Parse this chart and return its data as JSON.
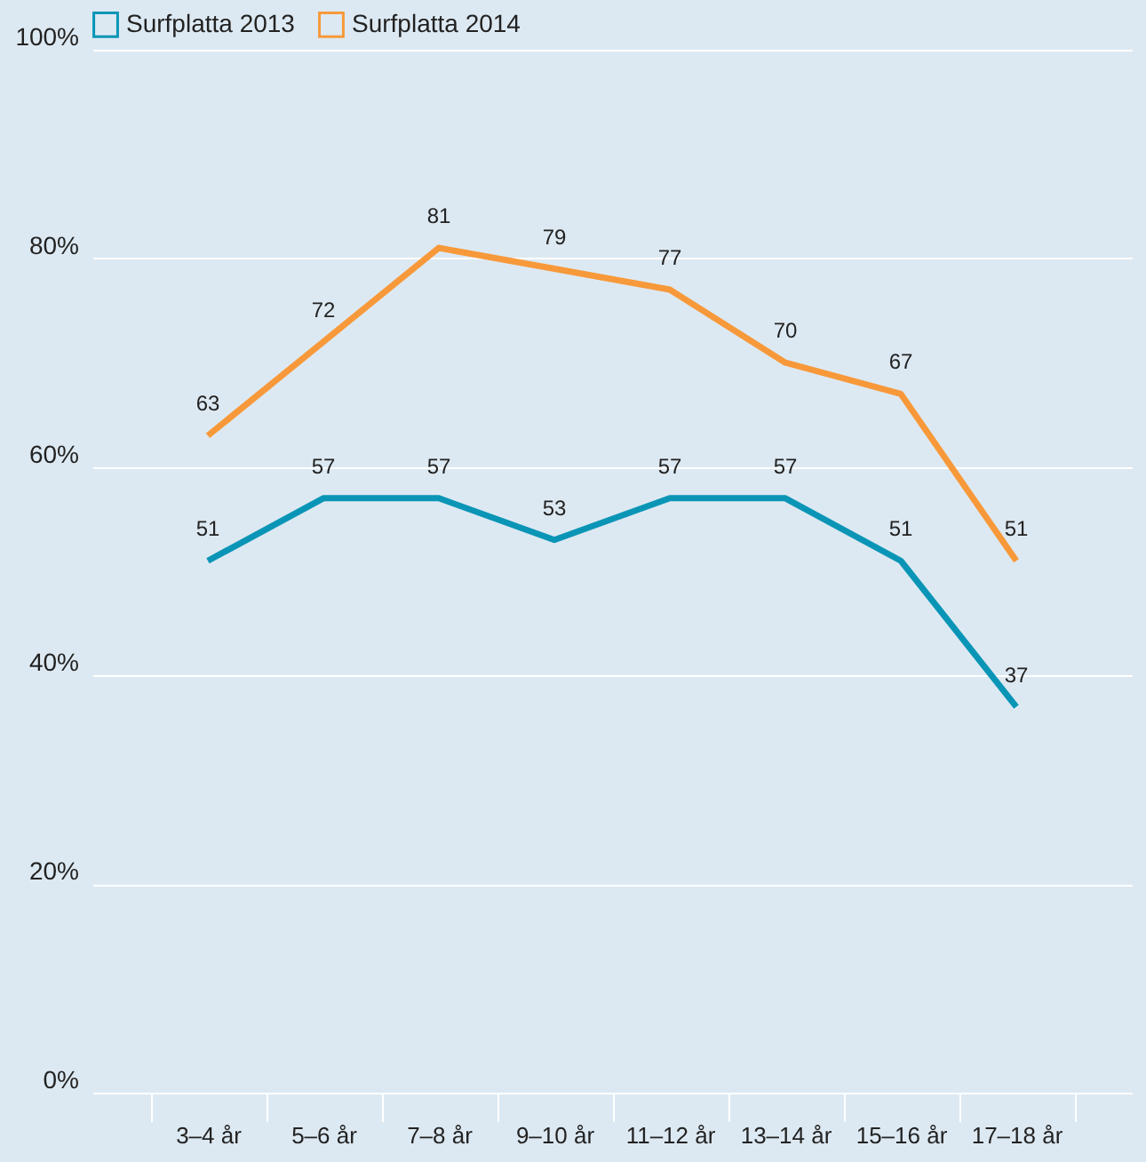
{
  "chart_data": {
    "type": "line",
    "categories": [
      "3–4 år",
      "5–6 år",
      "7–8 år",
      "9–10 år",
      "11–12 år",
      "13–14 år",
      "15–16 år",
      "17–18 år"
    ],
    "series": [
      {
        "name": "Surfplatta 2013",
        "color": "#0a95b6",
        "values": [
          51,
          57,
          57,
          53,
          57,
          57,
          51,
          37
        ]
      },
      {
        "name": "Surfplatta 2014",
        "color": "#f7993a",
        "values": [
          63,
          72,
          81,
          79,
          77,
          70,
          67,
          51
        ]
      }
    ],
    "ylim": [
      0,
      100
    ],
    "yticks": [
      {
        "value": 0,
        "label": "0%"
      },
      {
        "value": 20,
        "label": "20%"
      },
      {
        "value": 40,
        "label": "40%"
      },
      {
        "value": 60,
        "label": "60%"
      },
      {
        "value": 80,
        "label": "80%"
      },
      {
        "value": 100,
        "label": "100%"
      }
    ],
    "grid": "y",
    "legend": "top left",
    "data_labels": true,
    "marker": "none",
    "line_style": "solid"
  }
}
